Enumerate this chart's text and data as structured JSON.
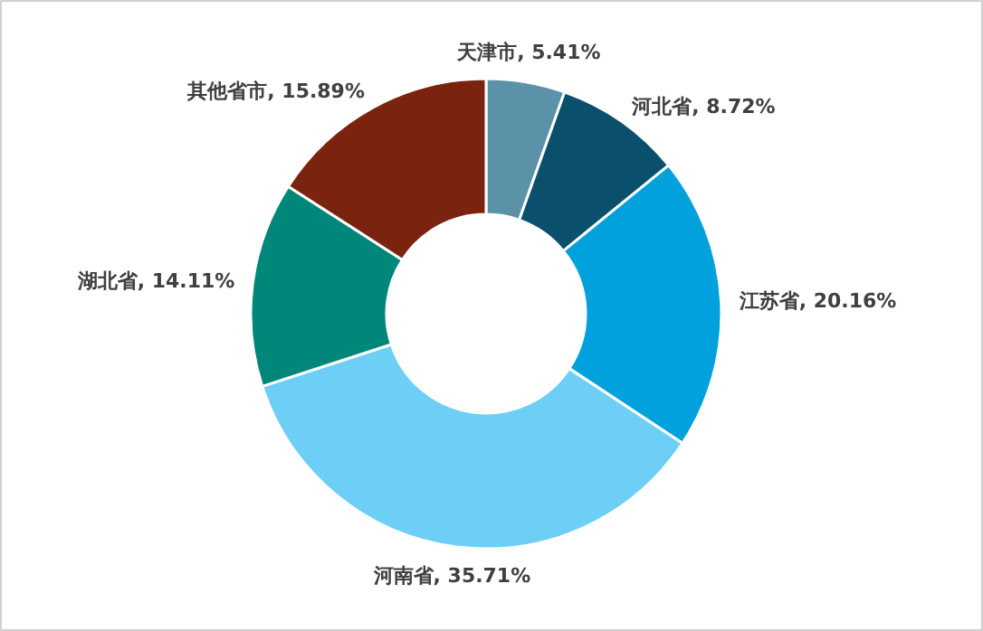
{
  "chart_data": {
    "type": "donut",
    "categories": [
      "天津市",
      "河北省",
      "江苏省",
      "河南省",
      "湖北省",
      "其他省市"
    ],
    "values": [
      5.41,
      8.72,
      20.16,
      35.71,
      14.11,
      15.89
    ],
    "value_labels": [
      "5.41%",
      "8.72%",
      "20.16%",
      "35.71%",
      "14.11%",
      "15.89%"
    ],
    "colors": [
      "#5b92a8",
      "#0a4f6b",
      "#00a1dc",
      "#6dcff6",
      "#00877a",
      "#7a2410"
    ]
  }
}
